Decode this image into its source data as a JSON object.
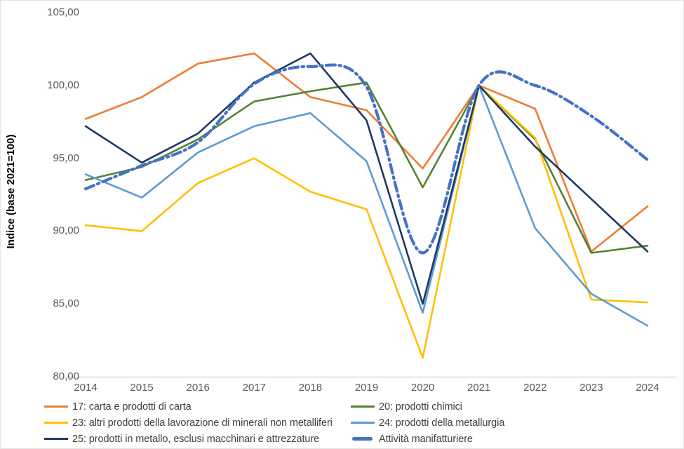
{
  "figure": {
    "background": "#FFFFFF",
    "border_color": "#E4E4E4"
  },
  "chart_data": {
    "type": "line",
    "title": "",
    "xlabel": "",
    "ylabel": "Indice (base 2021=100)",
    "ylim": [
      80,
      105
    ],
    "grid": false,
    "legend_position": "bottom",
    "axis_color": "#D9D9D9",
    "tick_label_color": "#595959",
    "legend_text_color": "#404040",
    "x_labels": [
      "2014",
      "2015",
      "2016",
      "2017",
      "2018",
      "2019",
      "2020",
      "2021",
      "2022",
      "2023",
      "2024"
    ],
    "y_ticks": [
      {
        "label": "105,00",
        "value": 105
      },
      {
        "label": "100,00",
        "value": 100
      },
      {
        "label": "95,00",
        "value": 95
      },
      {
        "label": "90,00",
        "value": 90
      },
      {
        "label": "85,00",
        "value": 85
      },
      {
        "label": "80,00",
        "value": 80
      }
    ],
    "series": [
      {
        "name": "17: carta e prodotti di carta",
        "color": "#ED7D31",
        "style": "solid",
        "width": 2.6,
        "smooth": false,
        "values": [
          97.7,
          99.2,
          101.5,
          102.2,
          99.2,
          98.3,
          94.3,
          100.0,
          98.4,
          88.6,
          91.7
        ]
      },
      {
        "name": "20: prodotti chimici",
        "color": "#548235",
        "style": "solid",
        "width": 2.6,
        "smooth": false,
        "values": [
          93.5,
          94.4,
          96.3,
          98.9,
          99.6,
          100.2,
          93.0,
          100.0,
          96.3,
          88.5,
          89.0
        ]
      },
      {
        "name": "23: altri prodotti della lavorazione di minerali non metalliferi",
        "color": "#FFC000",
        "style": "solid",
        "width": 2.6,
        "smooth": false,
        "values": [
          90.4,
          90.0,
          93.3,
          95.0,
          92.7,
          91.5,
          81.3,
          100.0,
          96.4,
          85.3,
          85.1
        ]
      },
      {
        "name": "24: prodotti della metallurgia",
        "color": "#5B9BD5",
        "style": "solid",
        "width": 2.6,
        "smooth": false,
        "values": [
          93.9,
          92.3,
          95.4,
          97.2,
          98.1,
          94.8,
          84.4,
          100.0,
          90.2,
          85.7,
          83.5
        ]
      },
      {
        "name": "25: prodotti in metallo, esclusi macchinari e attrezzature",
        "color": "#1F3864",
        "style": "solid",
        "width": 2.6,
        "smooth": false,
        "values": [
          97.2,
          94.7,
          96.7,
          100.2,
          102.2,
          97.6,
          85.0,
          100.0,
          95.8,
          92.2,
          88.6
        ]
      },
      {
        "name": "Attività manifatturiere",
        "color": "#4472C4",
        "style": "dash-dot",
        "width": 4.2,
        "smooth": true,
        "values": [
          92.9,
          94.5,
          96.1,
          100.1,
          101.3,
          99.9,
          88.5,
          100.0,
          100.0,
          97.9,
          94.9
        ]
      }
    ]
  }
}
